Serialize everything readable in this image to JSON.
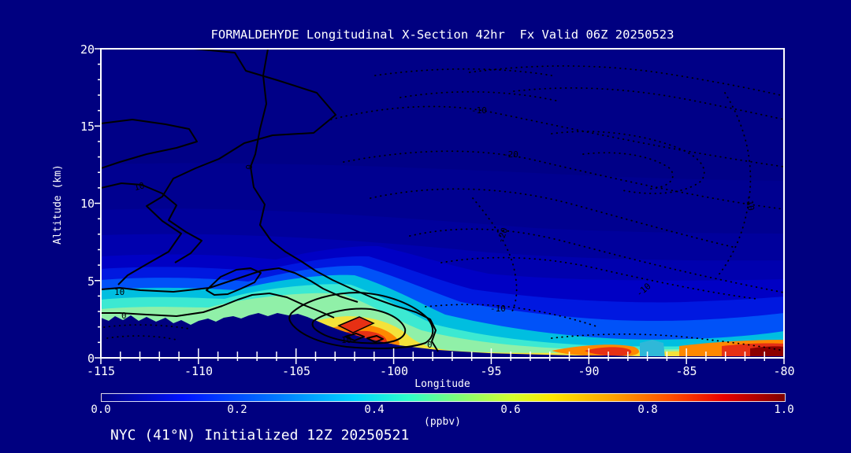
{
  "title": "FORMALDEHYDE Longitudinal X-Section 42hr  Fx Valid 06Z 20250523",
  "footer": "NYC (41°N) Initialized 12Z 20250521",
  "axes": {
    "y": {
      "label": "Altitude (km)",
      "ticks": [
        "0",
        "5",
        "10",
        "15",
        "20"
      ],
      "range": [
        0,
        20
      ]
    },
    "x": {
      "label": "Longitude",
      "ticks": [
        "-115",
        "-110",
        "-105",
        "-100",
        "-95",
        "-90",
        "-85",
        "-80"
      ],
      "range": [
        -115,
        -80
      ]
    }
  },
  "colorbar": {
    "label": "(ppbv)",
    "ticks": [
      "0.0",
      "0.2",
      "0.4",
      "0.6",
      "0.8",
      "1.0"
    ],
    "range": [
      0,
      1
    ],
    "palette": [
      [
        0.0,
        "#000080"
      ],
      [
        0.125,
        "#0000FF"
      ],
      [
        0.375,
        "#00FFFF"
      ],
      [
        0.625,
        "#FFFF00"
      ],
      [
        0.875,
        "#FF0000"
      ],
      [
        1.0,
        "#800000"
      ]
    ]
  },
  "contour_labels": {
    "solid": [
      "10",
      "0",
      "10",
      "0",
      "10",
      "0"
    ],
    "dotted": [
      "-10",
      "-20",
      "-20",
      "-10",
      "-10",
      "-10"
    ]
  },
  "chart_data": {
    "type": "heatmap",
    "title": "FORMALDEHYDE Longitudinal X-Section 42hr  Fx Valid 06Z 20250523",
    "xlabel": "Longitude",
    "ylabel": "Altitude (km)",
    "units": "ppbv",
    "xlim": [
      -115,
      -80
    ],
    "ylim": [
      0,
      20
    ],
    "colorbar_range": [
      0,
      1
    ],
    "x": [
      -115,
      -110,
      -105,
      -100,
      -95,
      -90,
      -85,
      -80
    ],
    "y_altitude_km": [
      0,
      1,
      2,
      3,
      4,
      5,
      7,
      10,
      15,
      20
    ],
    "values_ppbv_rows_by_altitude": [
      [
        null,
        null,
        null,
        0.75,
        0.6,
        0.85,
        0.55,
        0.95
      ],
      [
        null,
        null,
        null,
        0.65,
        0.45,
        0.7,
        0.45,
        0.85
      ],
      [
        null,
        null,
        0.8,
        0.5,
        0.3,
        0.3,
        0.3,
        0.6
      ],
      [
        0.4,
        0.45,
        0.5,
        0.45,
        0.25,
        0.25,
        0.25,
        0.3
      ],
      [
        0.35,
        0.4,
        0.45,
        0.42,
        0.22,
        0.22,
        0.22,
        0.25
      ],
      [
        0.3,
        0.3,
        0.4,
        0.4,
        0.2,
        0.2,
        0.2,
        0.2
      ],
      [
        0.15,
        0.15,
        0.25,
        0.3,
        0.15,
        0.12,
        0.12,
        0.15
      ],
      [
        0.08,
        0.08,
        0.1,
        0.1,
        0.08,
        0.08,
        0.08,
        0.1
      ],
      [
        0.05,
        0.05,
        0.05,
        0.05,
        0.04,
        0.04,
        0.04,
        0.04
      ],
      [
        0.03,
        0.03,
        0.03,
        0.03,
        0.02,
        0.02,
        0.02,
        0.02
      ]
    ],
    "terrain_height_km": [
      2.6,
      2.2,
      2.7,
      1.2,
      0.4,
      0.15,
      0.1,
      0.05
    ],
    "notable_features": [
      {
        "lon": -103.5,
        "alt_km": 1.5,
        "ppbv": 0.85,
        "note": "orange-red plume core over mountain slope"
      },
      {
        "lon": -90.5,
        "alt_km": 0.3,
        "ppbv": 0.85,
        "note": "red surface maximum"
      },
      {
        "lon": -80.5,
        "alt_km": 0.5,
        "ppbv": 0.95,
        "note": "dark-red surface maximum at right edge"
      },
      {
        "lon": -100.5,
        "alt_km": 5.0,
        "ppbv": 0.4,
        "note": "cyan plume lofted to mid-troposphere"
      }
    ],
    "overlay_contours": {
      "solid_line_values": [
        0,
        10
      ],
      "dotted_line_values": [
        -20,
        -10
      ],
      "legend_position": "none",
      "grid": false
    }
  }
}
